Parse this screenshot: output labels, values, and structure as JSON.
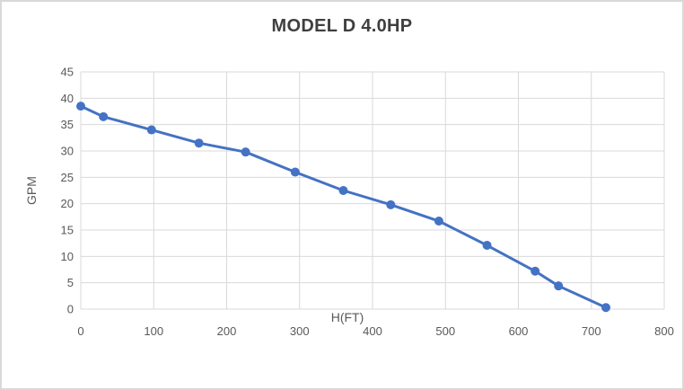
{
  "window": {
    "background": "#ffffff",
    "border_color": "#d9d9d9"
  },
  "chart_data": {
    "type": "line",
    "title": "MODEL D 4.0HP",
    "xlabel": "H(FT)",
    "ylabel": "GPM",
    "xlim": [
      0,
      800
    ],
    "ylim": [
      0,
      45
    ],
    "x_ticks": [
      0,
      100,
      200,
      300,
      400,
      500,
      600,
      700,
      800
    ],
    "y_ticks": [
      0,
      5,
      10,
      15,
      20,
      25,
      30,
      35,
      40,
      45
    ],
    "grid": true,
    "legend": "none",
    "series": [
      {
        "name": "GPM vs H(FT)",
        "color": "#4472c4",
        "marker": "circle",
        "marker_radius": 5,
        "line_width": 3,
        "points": [
          [
            0,
            38.5
          ],
          [
            31,
            36.5
          ],
          [
            97,
            34
          ],
          [
            162,
            31.5
          ],
          [
            226,
            29.8
          ],
          [
            294,
            26
          ],
          [
            360,
            22.5
          ],
          [
            425,
            19.8
          ],
          [
            491,
            16.7
          ],
          [
            557,
            12.1
          ],
          [
            623,
            7.2
          ],
          [
            655,
            4.4
          ],
          [
            720,
            0.3
          ]
        ]
      }
    ],
    "colors": {
      "gridline": "#d9d9d9",
      "axis_text": "#595959",
      "title_text": "#3f3f3f"
    }
  }
}
